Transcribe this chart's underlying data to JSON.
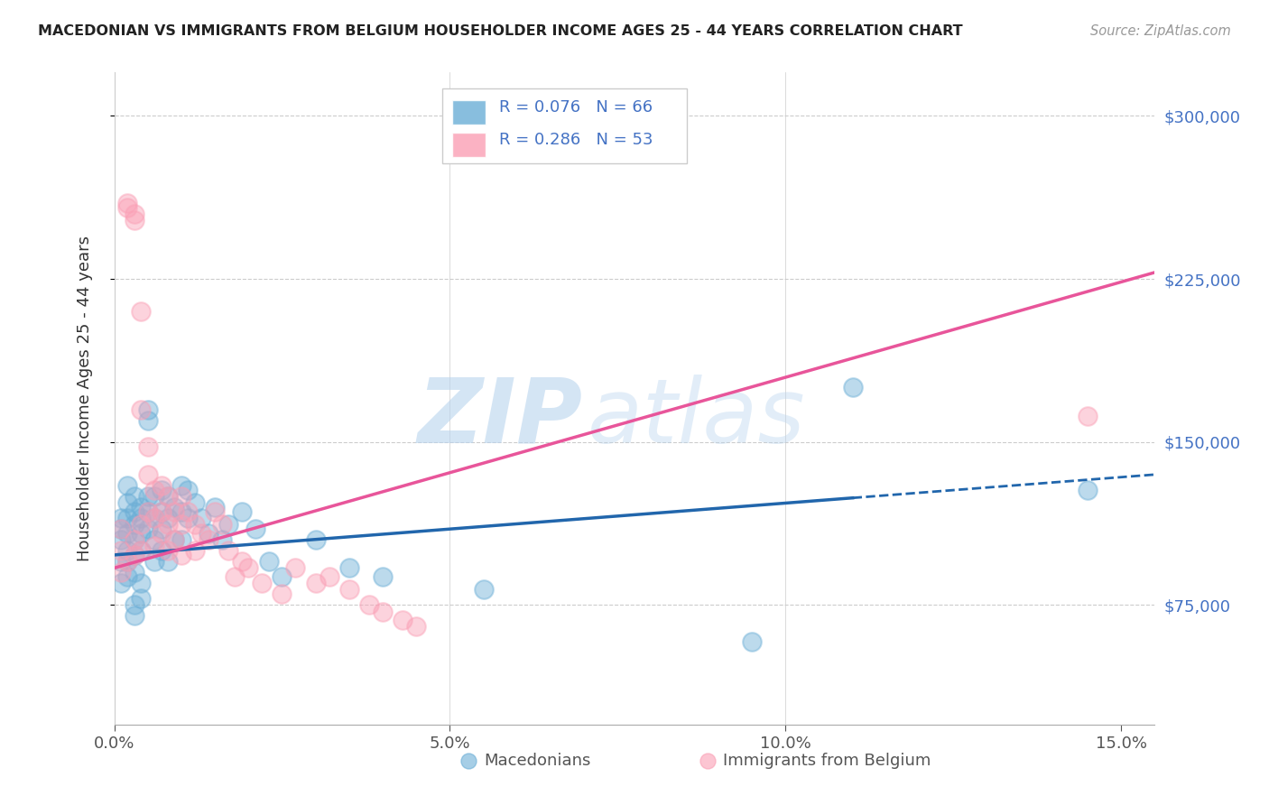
{
  "title": "MACEDONIAN VS IMMIGRANTS FROM BELGIUM HOUSEHOLDER INCOME AGES 25 - 44 YEARS CORRELATION CHART",
  "source": "Source: ZipAtlas.com",
  "ylabel": "Householder Income Ages 25 - 44 years",
  "xlabel_ticks": [
    "0.0%",
    "5.0%",
    "10.0%",
    "15.0%"
  ],
  "xlabel_tick_vals": [
    0.0,
    0.05,
    0.1,
    0.15
  ],
  "ytick_vals": [
    75000,
    150000,
    225000,
    300000
  ],
  "y_right_labels": [
    "$75,000",
    "$150,000",
    "$225,000",
    "$300,000"
  ],
  "xmin": 0.0,
  "xmax": 0.155,
  "ymin": 20000,
  "ymax": 320000,
  "macedonian_color": "#6baed6",
  "belgium_color": "#fa9fb5",
  "macedonian_line_color": "#2166ac",
  "belgium_line_color": "#e8559a",
  "legend_label_macedonian": "Macedonians",
  "legend_label_belgium": "Immigrants from Belgium",
  "watermark_zip": "ZIP",
  "watermark_atlas": "atlas",
  "mac_r": "0.076",
  "mac_n": "66",
  "bel_r": "0.286",
  "bel_n": "53",
  "macedonian_x": [
    0.001,
    0.001,
    0.001,
    0.001,
    0.001,
    0.002,
    0.002,
    0.002,
    0.002,
    0.002,
    0.002,
    0.002,
    0.003,
    0.003,
    0.003,
    0.003,
    0.003,
    0.003,
    0.003,
    0.003,
    0.004,
    0.004,
    0.004,
    0.004,
    0.004,
    0.004,
    0.005,
    0.005,
    0.005,
    0.005,
    0.005,
    0.006,
    0.006,
    0.006,
    0.006,
    0.007,
    0.007,
    0.007,
    0.007,
    0.008,
    0.008,
    0.008,
    0.009,
    0.009,
    0.01,
    0.01,
    0.01,
    0.011,
    0.011,
    0.012,
    0.013,
    0.014,
    0.015,
    0.016,
    0.017,
    0.019,
    0.021,
    0.023,
    0.025,
    0.03,
    0.035,
    0.04,
    0.055,
    0.095,
    0.11,
    0.145
  ],
  "macedonian_y": [
    95000,
    105000,
    110000,
    115000,
    85000,
    100000,
    108000,
    115000,
    122000,
    130000,
    95000,
    88000,
    90000,
    98000,
    105000,
    112000,
    118000,
    125000,
    75000,
    70000,
    100000,
    108000,
    115000,
    120000,
    85000,
    78000,
    110000,
    118000,
    125000,
    160000,
    165000,
    115000,
    125000,
    105000,
    95000,
    118000,
    128000,
    110000,
    100000,
    125000,
    115000,
    95000,
    120000,
    105000,
    130000,
    118000,
    105000,
    128000,
    115000,
    122000,
    115000,
    108000,
    120000,
    105000,
    112000,
    118000,
    110000,
    95000,
    88000,
    105000,
    92000,
    88000,
    82000,
    58000,
    175000,
    128000
  ],
  "belgium_x": [
    0.001,
    0.001,
    0.001,
    0.002,
    0.002,
    0.002,
    0.003,
    0.003,
    0.003,
    0.003,
    0.004,
    0.004,
    0.004,
    0.004,
    0.005,
    0.005,
    0.005,
    0.006,
    0.006,
    0.006,
    0.007,
    0.007,
    0.007,
    0.008,
    0.008,
    0.008,
    0.009,
    0.009,
    0.01,
    0.01,
    0.01,
    0.011,
    0.012,
    0.012,
    0.013,
    0.014,
    0.015,
    0.016,
    0.017,
    0.018,
    0.019,
    0.02,
    0.022,
    0.025,
    0.027,
    0.03,
    0.032,
    0.035,
    0.038,
    0.04,
    0.043,
    0.045,
    0.145
  ],
  "belgium_y": [
    90000,
    100000,
    110000,
    260000,
    258000,
    95000,
    255000,
    252000,
    105000,
    98000,
    210000,
    165000,
    112000,
    100000,
    148000,
    135000,
    118000,
    128000,
    115000,
    102000,
    130000,
    118000,
    108000,
    125000,
    112000,
    100000,
    118000,
    105000,
    125000,
    112000,
    98000,
    118000,
    112000,
    100000,
    108000,
    105000,
    118000,
    112000,
    100000,
    88000,
    95000,
    92000,
    85000,
    80000,
    92000,
    85000,
    88000,
    82000,
    75000,
    72000,
    68000,
    65000,
    162000
  ]
}
